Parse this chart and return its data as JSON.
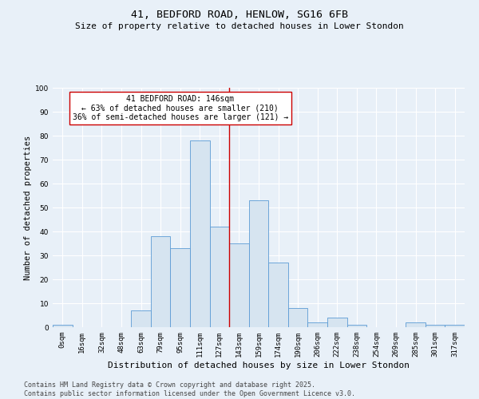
{
  "title_line1": "41, BEDFORD ROAD, HENLOW, SG16 6FB",
  "title_line2": "Size of property relative to detached houses in Lower Stondon",
  "xlabel": "Distribution of detached houses by size in Lower Stondon",
  "ylabel": "Number of detached properties",
  "categories": [
    "0sqm",
    "16sqm",
    "32sqm",
    "48sqm",
    "63sqm",
    "79sqm",
    "95sqm",
    "111sqm",
    "127sqm",
    "143sqm",
    "159sqm",
    "174sqm",
    "190sqm",
    "206sqm",
    "222sqm",
    "238sqm",
    "254sqm",
    "269sqm",
    "285sqm",
    "301sqm",
    "317sqm"
  ],
  "bar_heights": [
    1,
    0,
    0,
    0,
    7,
    38,
    33,
    78,
    42,
    35,
    53,
    27,
    8,
    2,
    4,
    1,
    0,
    0,
    2,
    1,
    1
  ],
  "bar_color_fill": "#d6e4f0",
  "bar_color_edge": "#5b9bd5",
  "vline_x_index": 8.5,
  "vline_color": "#cc0000",
  "annotation_text": "41 BEDFORD ROAD: 146sqm\n← 63% of detached houses are smaller (210)\n36% of semi-detached houses are larger (121) →",
  "annotation_box_color": "#ffffff",
  "annotation_box_edge": "#cc0000",
  "ylim": [
    0,
    100
  ],
  "yticks": [
    0,
    10,
    20,
    30,
    40,
    50,
    60,
    70,
    80,
    90,
    100
  ],
  "background_color": "#e8f0f8",
  "grid_color": "#ffffff",
  "footer_text": "Contains HM Land Registry data © Crown copyright and database right 2025.\nContains public sector information licensed under the Open Government Licence v3.0.",
  "title_fontsize": 9.5,
  "subtitle_fontsize": 8,
  "xlabel_fontsize": 8,
  "ylabel_fontsize": 7.5,
  "tick_fontsize": 6.5,
  "annotation_fontsize": 7,
  "footer_fontsize": 6
}
